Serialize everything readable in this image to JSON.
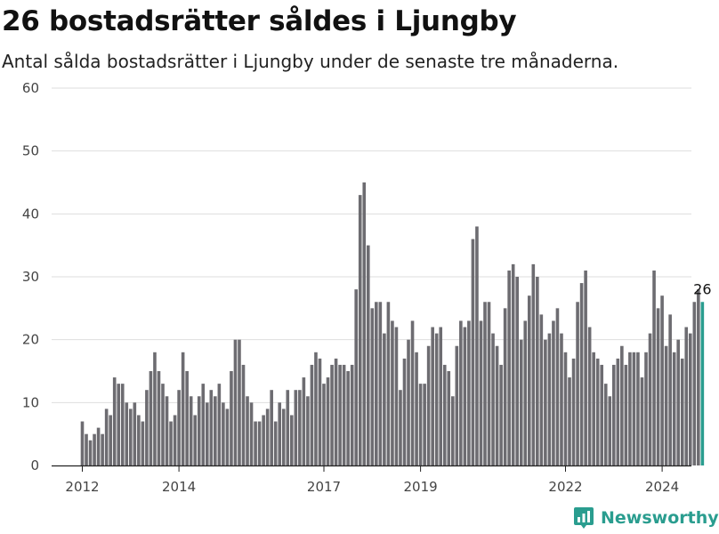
{
  "header": {
    "title": "26 bostadsrätter såldes i Ljungby",
    "subtitle": "Antal sålda bostadsrätter i Ljungby under de senaste tre månaderna."
  },
  "brand": {
    "name": "Newsworthy"
  },
  "colors": {
    "bar": "#6d6c71",
    "highlight": "#2a9d8f",
    "grid": "#dedede",
    "axis": "#222222"
  },
  "chart_data": {
    "type": "bar",
    "start": "2012-01",
    "values": [
      7,
      5,
      4,
      5,
      6,
      5,
      9,
      8,
      14,
      13,
      13,
      10,
      9,
      10,
      8,
      7,
      12,
      15,
      18,
      15,
      13,
      11,
      7,
      8,
      12,
      18,
      15,
      11,
      8,
      11,
      13,
      10,
      12,
      11,
      13,
      10,
      9,
      15,
      20,
      20,
      16,
      11,
      10,
      7,
      7,
      8,
      9,
      12,
      7,
      10,
      9,
      12,
      8,
      12,
      12,
      14,
      11,
      16,
      18,
      17,
      13,
      14,
      16,
      17,
      16,
      16,
      15,
      16,
      28,
      43,
      45,
      35,
      25,
      26,
      26,
      21,
      26,
      23,
      22,
      12,
      17,
      20,
      23,
      18,
      13,
      13,
      19,
      22,
      21,
      22,
      16,
      15,
      11,
      19,
      23,
      22,
      23,
      36,
      38,
      23,
      26,
      26,
      21,
      19,
      16,
      25,
      31,
      32,
      30,
      20,
      23,
      27,
      32,
      30,
      24,
      20,
      21,
      23,
      25,
      21,
      18,
      14,
      17,
      26,
      29,
      31,
      22,
      18,
      17,
      16,
      13,
      11,
      16,
      17,
      19,
      16,
      18,
      18,
      18,
      14,
      18,
      21,
      31,
      25,
      27,
      19,
      24,
      18,
      20,
      17,
      22,
      21,
      26,
      28,
      26
    ],
    "highlight_last": true,
    "data_label": "26",
    "x_ticks": [
      {
        "label": "2012",
        "index": 0
      },
      {
        "label": "2014",
        "index": 24
      },
      {
        "label": "2017",
        "index": 60
      },
      {
        "label": "2019",
        "index": 84
      },
      {
        "label": "2022",
        "index": 120
      },
      {
        "label": "2024",
        "index": 144
      }
    ],
    "y_ticks": [
      0,
      10,
      20,
      30,
      40,
      50,
      60
    ],
    "ylim": [
      0,
      60
    ],
    "grid": true
  }
}
